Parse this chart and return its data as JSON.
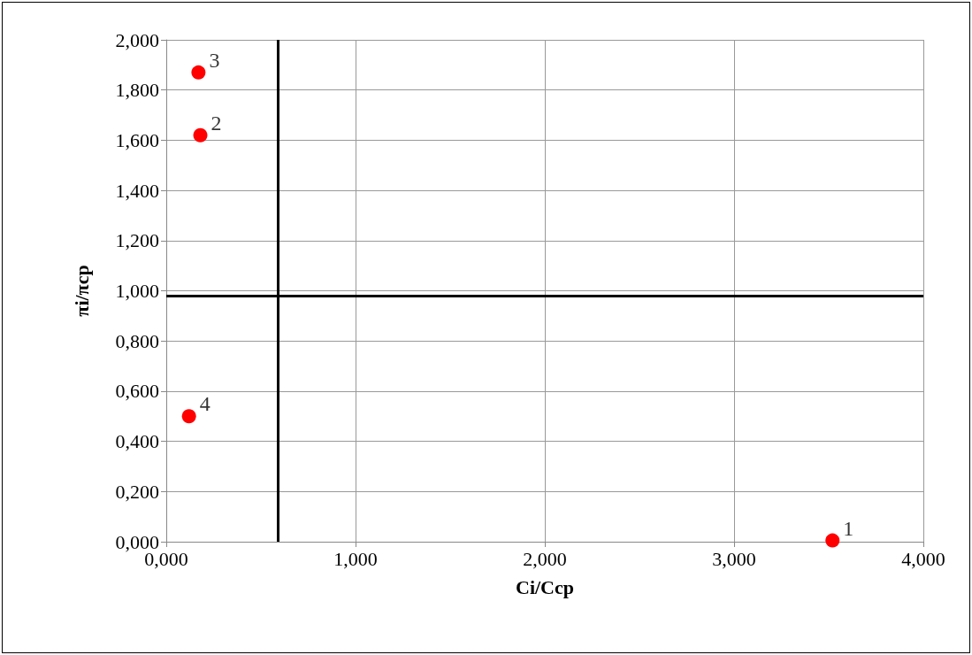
{
  "chart_data": {
    "type": "scatter",
    "xlabel": "Ci/Ccp",
    "ylabel": "πi/πcp",
    "x": [
      3.52,
      0.18,
      0.17,
      0.12
    ],
    "series": [
      {
        "color": "#ff0000",
        "values": [
          0.005,
          1.62,
          1.87,
          0.5
        ]
      }
    ],
    "xlim": [
      0,
      4
    ],
    "xticks": [
      {
        "value": 0,
        "label": "0,000"
      },
      {
        "value": 1,
        "label": "1,000"
      },
      {
        "value": 2,
        "label": "2,000"
      },
      {
        "value": 3,
        "label": "3,000"
      },
      {
        "value": 4,
        "label": "4,000"
      }
    ],
    "ylim": [
      0,
      2
    ],
    "yticks": [
      {
        "value": 0,
        "label": "0,000"
      },
      {
        "value": 0.2,
        "label": "0,200"
      },
      {
        "value": 0.4,
        "label": "0,400"
      },
      {
        "value": 0.6,
        "label": "0,600"
      },
      {
        "value": 0.8,
        "label": "0,800"
      },
      {
        "value": 1,
        "label": "1,000"
      },
      {
        "value": 1.2,
        "label": "1,200"
      },
      {
        "value": 1.4,
        "label": "1,400"
      },
      {
        "value": 1.6,
        "label": "1,600"
      },
      {
        "value": 1.8,
        "label": "1,800"
      },
      {
        "value": 2,
        "label": "2,000"
      }
    ],
    "ref_lines": [
      {
        "axis": "x",
        "value": 0.59,
        "color": "#000000"
      },
      {
        "axis": "y",
        "value": 0.98,
        "color": "#000000"
      }
    ],
    "annotations": [
      {
        "text": "1",
        "x": 3.52,
        "y": 0.005
      },
      {
        "text": "2",
        "x": 0.18,
        "y": 1.62
      },
      {
        "text": "3",
        "x": 0.17,
        "y": 1.87
      },
      {
        "text": "4",
        "x": 0.12,
        "y": 0.5
      }
    ],
    "grid": true,
    "marker": "circle"
  }
}
